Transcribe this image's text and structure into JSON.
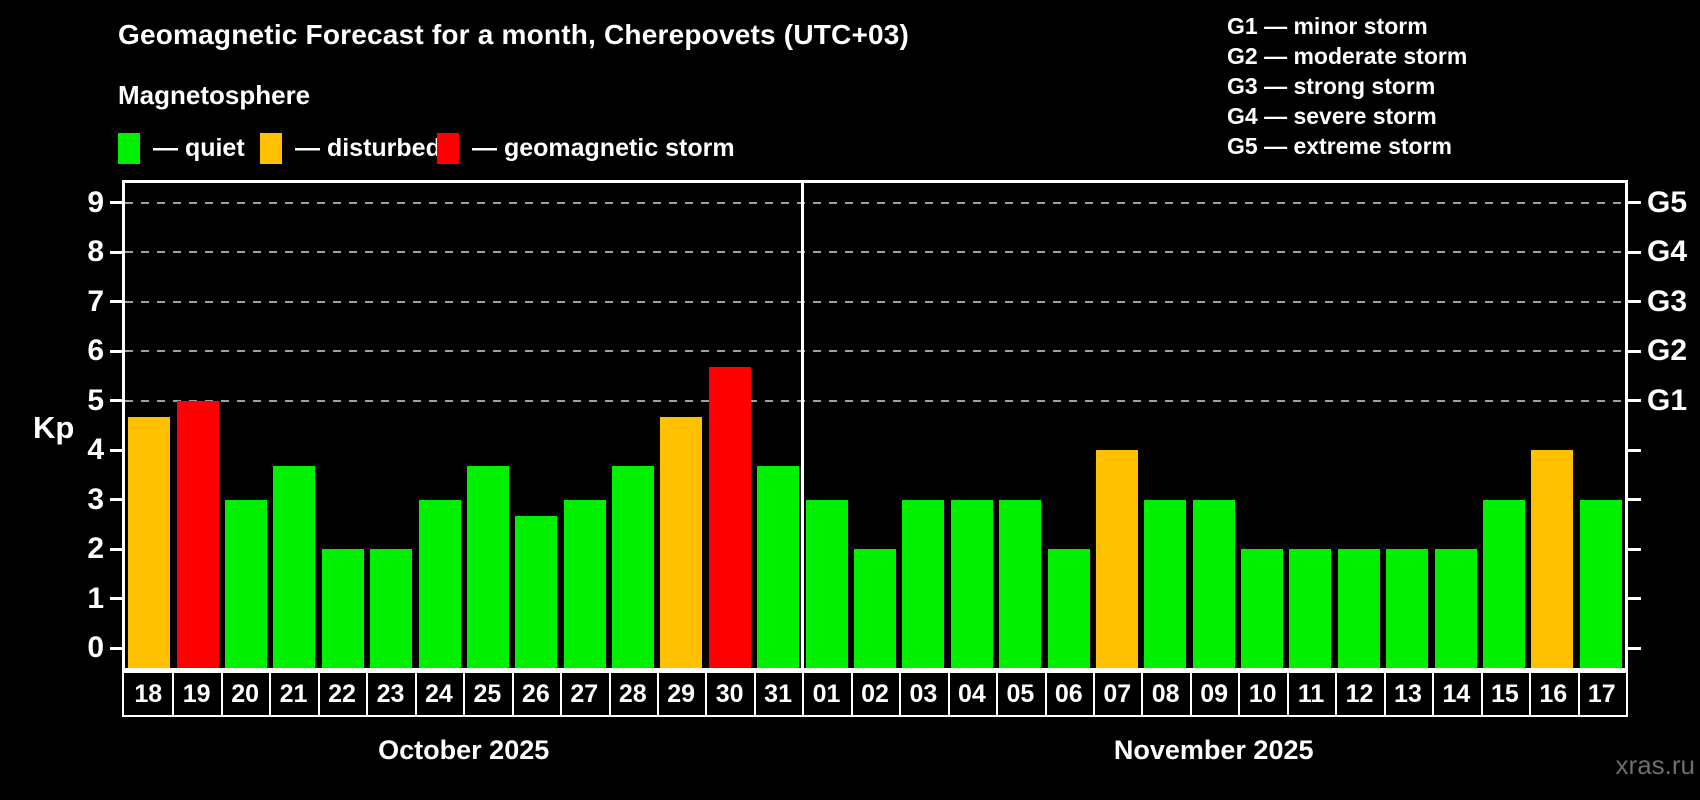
{
  "header": {
    "title": "Geomagnetic Forecast for a month, Cherepovets (UTC+03)",
    "subtitle": "Magnetosphere",
    "legend": [
      {
        "label": "— quiet",
        "status": "quiet"
      },
      {
        "label": "— disturbed",
        "status": "disturbed"
      },
      {
        "label": "— geomagnetic storm",
        "status": "storm"
      }
    ],
    "g_legend": [
      "G1 — minor storm",
      "G2 — moderate storm",
      "G3 — strong storm",
      "G4 — severe storm",
      "G5 — extreme storm"
    ]
  },
  "chart_data": {
    "type": "bar",
    "ylabel": "Kp",
    "ylim": [
      0,
      9
    ],
    "yticks": [
      0,
      1,
      2,
      3,
      4,
      5,
      6,
      7,
      8,
      9
    ],
    "grid": "dashed gray lines at G-storm levels only",
    "legend_position": "top",
    "g_levels": [
      {
        "label": "G1",
        "kp": 5
      },
      {
        "label": "G2",
        "kp": 6
      },
      {
        "label": "G3",
        "kp": 7
      },
      {
        "label": "G4",
        "kp": 8
      },
      {
        "label": "G5",
        "kp": 9
      }
    ],
    "status_colors": {
      "quiet": "#00f000",
      "disturbed": "#ffc000",
      "storm": "#ff0000"
    },
    "months": [
      {
        "label": "October 2025",
        "days": [
          {
            "day": "18",
            "kp": 4.67,
            "status": "disturbed"
          },
          {
            "day": "19",
            "kp": 5.0,
            "status": "storm"
          },
          {
            "day": "20",
            "kp": 3.0,
            "status": "quiet"
          },
          {
            "day": "21",
            "kp": 3.67,
            "status": "quiet"
          },
          {
            "day": "22",
            "kp": 2.0,
            "status": "quiet"
          },
          {
            "day": "23",
            "kp": 2.0,
            "status": "quiet"
          },
          {
            "day": "24",
            "kp": 3.0,
            "status": "quiet"
          },
          {
            "day": "25",
            "kp": 3.67,
            "status": "quiet"
          },
          {
            "day": "26",
            "kp": 2.67,
            "status": "quiet"
          },
          {
            "day": "27",
            "kp": 3.0,
            "status": "quiet"
          },
          {
            "day": "28",
            "kp": 3.67,
            "status": "quiet"
          },
          {
            "day": "29",
            "kp": 4.67,
            "status": "disturbed"
          },
          {
            "day": "30",
            "kp": 5.67,
            "status": "storm"
          },
          {
            "day": "31",
            "kp": 3.67,
            "status": "quiet"
          }
        ]
      },
      {
        "label": "November 2025",
        "days": [
          {
            "day": "01",
            "kp": 3.0,
            "status": "quiet"
          },
          {
            "day": "02",
            "kp": 2.0,
            "status": "quiet"
          },
          {
            "day": "03",
            "kp": 3.0,
            "status": "quiet"
          },
          {
            "day": "04",
            "kp": 3.0,
            "status": "quiet"
          },
          {
            "day": "05",
            "kp": 3.0,
            "status": "quiet"
          },
          {
            "day": "06",
            "kp": 2.0,
            "status": "quiet"
          },
          {
            "day": "07",
            "kp": 4.0,
            "status": "disturbed"
          },
          {
            "day": "08",
            "kp": 3.0,
            "status": "quiet"
          },
          {
            "day": "09",
            "kp": 3.0,
            "status": "quiet"
          },
          {
            "day": "10",
            "kp": 2.0,
            "status": "quiet"
          },
          {
            "day": "11",
            "kp": 2.0,
            "status": "quiet"
          },
          {
            "day": "12",
            "kp": 2.0,
            "status": "quiet"
          },
          {
            "day": "13",
            "kp": 2.0,
            "status": "quiet"
          },
          {
            "day": "14",
            "kp": 2.0,
            "status": "quiet"
          },
          {
            "day": "15",
            "kp": 3.0,
            "status": "quiet"
          },
          {
            "day": "16",
            "kp": 4.0,
            "status": "disturbed"
          },
          {
            "day": "17",
            "kp": 3.0,
            "status": "quiet"
          }
        ]
      }
    ]
  },
  "watermark": "xras.ru"
}
